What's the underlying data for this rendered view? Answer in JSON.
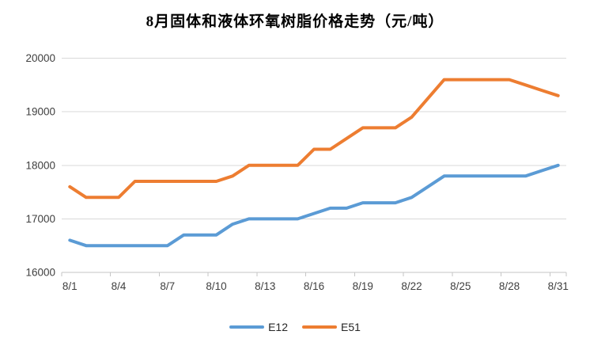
{
  "chart_data": {
    "type": "line",
    "title": "8月固体和液体环氧树脂价格走势（元/吨）",
    "xlabel": "",
    "ylabel": "",
    "ylim": [
      16000,
      20000
    ],
    "yticks": [
      16000,
      17000,
      18000,
      19000,
      20000
    ],
    "x_tick_labels": [
      "8/1",
      "8/4",
      "8/7",
      "8/10",
      "8/13",
      "8/16",
      "8/19",
      "8/22",
      "8/25",
      "8/28",
      "8/31"
    ],
    "x_tick_interval": 3,
    "grid": "horizontal",
    "legend_position": "bottom",
    "categories": [
      "8/1",
      "8/2",
      "8/3",
      "8/4",
      "8/5",
      "8/6",
      "8/7",
      "8/8",
      "8/9",
      "8/10",
      "8/11",
      "8/12",
      "8/13",
      "8/14",
      "8/15",
      "8/16",
      "8/17",
      "8/18",
      "8/19",
      "8/20",
      "8/21",
      "8/22",
      "8/23",
      "8/24",
      "8/25",
      "8/26",
      "8/27",
      "8/28",
      "8/29",
      "8/30",
      "8/31"
    ],
    "series": [
      {
        "name": "E12",
        "color": "#5B9BD5",
        "values": [
          16600,
          16500,
          16500,
          16500,
          16500,
          16500,
          16500,
          16700,
          16700,
          16700,
          16900,
          17000,
          17000,
          17000,
          17000,
          17100,
          17200,
          17200,
          17300,
          17300,
          17300,
          17400,
          17600,
          17800,
          17800,
          17800,
          17800,
          17800,
          17800,
          17900,
          18000
        ]
      },
      {
        "name": "E51",
        "color": "#ED7D31",
        "values": [
          17600,
          17400,
          17400,
          17400,
          17700,
          17700,
          17700,
          17700,
          17700,
          17700,
          17800,
          18000,
          18000,
          18000,
          18000,
          18300,
          18300,
          18500,
          18700,
          18700,
          18700,
          18900,
          19250,
          19600,
          19600,
          19600,
          19600,
          19600,
          19500,
          19400,
          19300
        ]
      }
    ],
    "style": {
      "gridline_color": "#D9D9D9",
      "axis_color": "#C6C6C6",
      "tick_label_color": "#404040",
      "line_width": 4
    }
  }
}
